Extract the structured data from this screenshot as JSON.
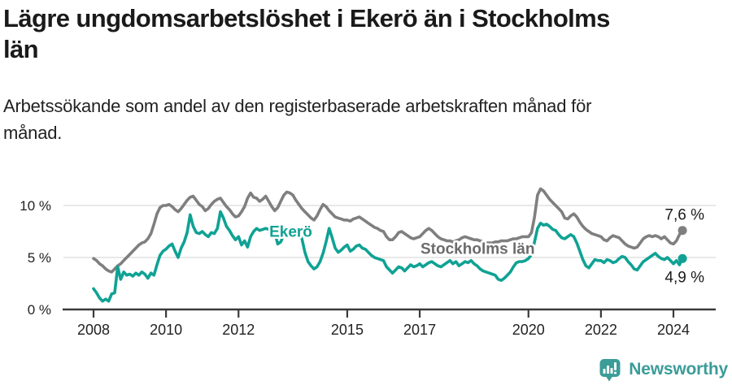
{
  "header": {
    "title_lines": [
      "Lägre ungdomsarbetslöshet i Ekerö än i Stockholms",
      "län"
    ],
    "subtitle": "Arbetssökande som andel av den registerbaserade arbetskraften månad för månad."
  },
  "colors": {
    "ekero": "#0FA294",
    "stockholm": "#7F7F7F",
    "stockholm_label": "#6B6B6B",
    "grid": "#DADADA",
    "axis": "#3A3A3A",
    "text": "#222222",
    "value_label": "#1A1A1A",
    "brand": "#3B9C98"
  },
  "chart_data": {
    "type": "line",
    "title": "Lägre ungdomsarbetslöshet i Ekerö än i Stockholms län",
    "subtitle": "Arbetssökande som andel av den registerbaserade arbetskraften månad för månad.",
    "unit": "%",
    "frequency": "monthly",
    "x_start": "2008-01",
    "x_end": "2024-04",
    "x_ticks": [
      2008,
      2010,
      2012,
      2015,
      2017,
      2020,
      2022,
      2024
    ],
    "x_tick_labels": [
      "2008",
      "2010",
      "2012",
      "2015",
      "2017",
      "2020",
      "2022",
      "2024"
    ],
    "y_ticks": [
      0,
      5,
      10
    ],
    "y_tick_labels": [
      "0 %",
      "5 %",
      "10 %"
    ],
    "ylim": [
      0,
      11.8
    ],
    "grid": "horizontal",
    "legend": "inline-labels",
    "series": [
      {
        "id": "stockholms-lan",
        "name": "Stockholms län",
        "color": "#7F7F7F",
        "label_color": "#6B6B6B",
        "label_year": 2017.02,
        "label_value": 5.9,
        "end_label": "7,6 %",
        "end_label_position": "above",
        "values": [
          4.9,
          4.7,
          4.4,
          4.2,
          3.9,
          3.7,
          3.6,
          3.9,
          4.2,
          4.4,
          4.7,
          5.0,
          5.3,
          5.6,
          5.9,
          6.2,
          6.4,
          6.5,
          6.8,
          7.3,
          8.2,
          9.2,
          9.8,
          10.0,
          10.0,
          10.1,
          9.9,
          9.6,
          9.4,
          9.7,
          10.1,
          10.5,
          10.8,
          10.9,
          10.5,
          10.1,
          9.9,
          9.5,
          9.7,
          10.1,
          10.4,
          10.6,
          10.7,
          10.3,
          9.9,
          9.6,
          9.2,
          8.9,
          9.0,
          9.4,
          9.9,
          10.7,
          11.2,
          10.8,
          10.7,
          10.4,
          10.6,
          10.9,
          10.4,
          9.9,
          9.5,
          9.8,
          10.4,
          11.0,
          11.3,
          11.2,
          11.0,
          10.5,
          10.1,
          9.7,
          9.4,
          9.1,
          8.8,
          8.6,
          9.0,
          9.6,
          10.1,
          9.9,
          9.5,
          9.2,
          8.9,
          8.8,
          8.7,
          8.6,
          8.6,
          8.5,
          8.7,
          8.8,
          8.9,
          8.7,
          8.5,
          8.3,
          8.1,
          7.9,
          7.8,
          7.6,
          7.5,
          7.0,
          6.7,
          6.7,
          7.0,
          7.4,
          7.5,
          7.3,
          7.1,
          6.9,
          6.8,
          6.9,
          7.0,
          7.3,
          7.6,
          7.8,
          7.6,
          7.3,
          7.0,
          6.8,
          6.7,
          6.6,
          6.6,
          6.5,
          6.6,
          6.7,
          6.9,
          7.0,
          6.9,
          6.8,
          6.7,
          6.7,
          6.6,
          6.5,
          6.4,
          6.4,
          6.4,
          6.5,
          6.5,
          6.6,
          6.6,
          6.6,
          6.7,
          6.8,
          6.8,
          6.9,
          7.0,
          7.0,
          7.0,
          7.4,
          8.9,
          11.0,
          11.6,
          11.4,
          11.0,
          10.6,
          10.3,
          10.0,
          9.7,
          9.4,
          8.8,
          8.7,
          9.0,
          9.2,
          8.9,
          8.4,
          8.0,
          7.7,
          7.5,
          7.3,
          7.2,
          7.1,
          7.0,
          6.7,
          6.6,
          6.9,
          7.1,
          7.0,
          6.9,
          6.6,
          6.3,
          6.1,
          6.0,
          5.9,
          6.0,
          6.4,
          6.8,
          7.0,
          7.1,
          7.0,
          7.1,
          7.0,
          6.8,
          7.0,
          6.7,
          6.4,
          6.3,
          6.6,
          7.2,
          7.6
        ]
      },
      {
        "id": "ekero",
        "name": "Ekerö",
        "color": "#0FA294",
        "label_color": "#0FA294",
        "label_year": 2012.85,
        "label_value": 7.55,
        "end_label": "4,9 %",
        "end_label_position": "below",
        "values": [
          2.0,
          1.6,
          1.1,
          0.8,
          1.0,
          0.8,
          1.5,
          1.6,
          4.1,
          2.9,
          3.6,
          3.3,
          3.4,
          3.2,
          3.5,
          3.3,
          3.6,
          3.4,
          3.0,
          3.5,
          3.3,
          4.3,
          5.2,
          5.6,
          5.8,
          6.1,
          6.3,
          5.6,
          5.0,
          5.9,
          6.5,
          7.4,
          9.1,
          8.0,
          7.4,
          7.3,
          7.5,
          7.2,
          7.0,
          7.4,
          7.3,
          7.8,
          9.4,
          8.8,
          8.0,
          7.6,
          7.1,
          6.7,
          7.0,
          6.2,
          6.6,
          6.0,
          7.0,
          7.5,
          7.8,
          7.6,
          7.7,
          7.8,
          7.7,
          7.6,
          7.4,
          6.3,
          6.5,
          7.2,
          7.4,
          7.6,
          7.5,
          7.4,
          7.3,
          6.8,
          5.5,
          4.6,
          4.2,
          3.9,
          4.1,
          4.6,
          5.4,
          6.5,
          7.8,
          6.9,
          5.9,
          5.5,
          5.7,
          6.0,
          6.2,
          5.6,
          5.8,
          6.1,
          6.2,
          5.9,
          5.8,
          5.5,
          5.2,
          5.0,
          4.9,
          4.8,
          4.7,
          4.1,
          3.8,
          3.5,
          3.8,
          4.1,
          4.0,
          3.7,
          4.0,
          4.3,
          4.1,
          4.2,
          4.4,
          4.1,
          4.3,
          4.5,
          4.6,
          4.4,
          4.2,
          4.1,
          4.3,
          4.5,
          4.7,
          4.4,
          4.6,
          4.2,
          4.4,
          4.6,
          4.5,
          4.7,
          4.4,
          4.2,
          3.9,
          3.7,
          3.6,
          3.5,
          3.4,
          3.3,
          2.9,
          2.8,
          3.0,
          3.3,
          3.6,
          4.1,
          4.5,
          4.6,
          4.6,
          4.7,
          4.9,
          5.3,
          6.5,
          7.8,
          8.3,
          8.1,
          8.2,
          8.0,
          7.7,
          7.6,
          7.2,
          6.9,
          6.8,
          7.0,
          7.2,
          7.0,
          6.4,
          5.6,
          4.8,
          4.2,
          4.0,
          4.4,
          4.8,
          4.7,
          4.7,
          4.5,
          4.8,
          4.7,
          4.5,
          4.6,
          4.9,
          5.1,
          5.0,
          4.6,
          4.3,
          3.9,
          3.8,
          4.2,
          4.6,
          4.8,
          5.0,
          5.2,
          5.4,
          5.1,
          4.9,
          4.8,
          5.0,
          4.7,
          4.4,
          4.7,
          4.3,
          4.9
        ]
      }
    ]
  },
  "footer": {
    "brand": "Newsworthy"
  }
}
